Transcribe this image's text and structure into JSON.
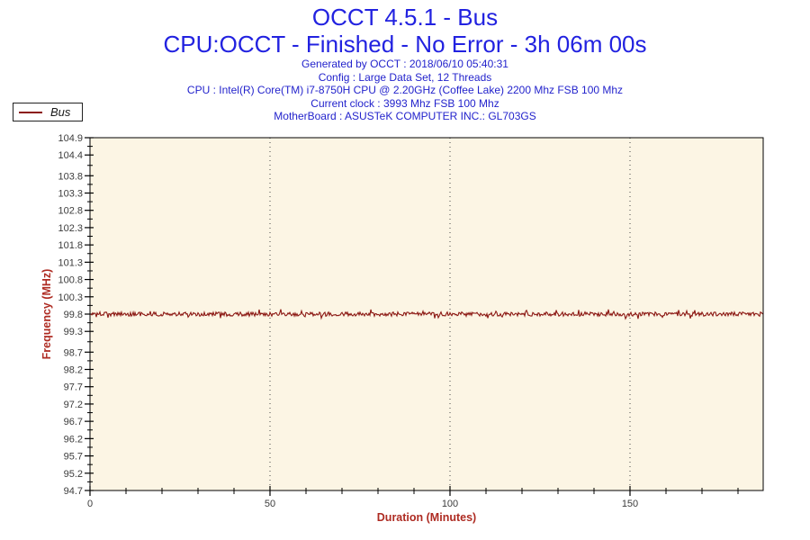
{
  "header": {
    "title": "OCCT 4.5.1 - Bus",
    "subtitle": "CPU:OCCT - Finished - No Error - 3h 06m 00s",
    "info_lines": [
      "Generated by OCCT : 2018/06/10 05:40:31",
      "Config : Large Data Set, 12 Threads",
      "CPU : Intel(R) Core(TM) i7-8750H CPU @ 2.20GHz (Coffee Lake) 2200 Mhz FSB 100 Mhz",
      "Current clock : 3993 Mhz FSB 100 Mhz",
      "MotherBoard : ASUSTeK COMPUTER INC.: GL703GS"
    ]
  },
  "legend": {
    "label": "Bus",
    "line_color": "#8B1712"
  },
  "colors": {
    "title_blue": "#2222E0",
    "info_blue": "#2323CC",
    "axis_label_red": "#AE2B22",
    "series_red": "#8B1712",
    "plot_background": "#FCF5E4",
    "axis_line": "#000000",
    "tick_text": "#3C3C3C",
    "gridline": "#444444"
  },
  "chart_data": {
    "type": "line",
    "title": "",
    "xlabel": "Duration (Minutes)",
    "ylabel": "Frequency (MHz)",
    "x_range": [
      0,
      187
    ],
    "ylim": [
      94.7,
      104.9
    ],
    "x_major_ticks": [
      0,
      50,
      100,
      150
    ],
    "x_minor_step": 10,
    "y_major_ticks": [
      104.9,
      104.4,
      103.8,
      103.3,
      102.8,
      102.3,
      101.8,
      101.3,
      100.8,
      100.3,
      99.8,
      99.3,
      98.7,
      98.2,
      97.7,
      97.2,
      96.7,
      96.2,
      95.7,
      95.2,
      94.7
    ],
    "gridlines_x": [
      50,
      100,
      150
    ],
    "grid_horizontal": false,
    "legend_position": "top-left-outside",
    "series": [
      {
        "name": "Bus",
        "color": "#8B1712",
        "base_value": 99.8,
        "noise_amplitude": 0.06,
        "x": [
          0,
          10,
          20,
          30,
          40,
          50,
          60,
          70,
          80,
          90,
          100,
          110,
          120,
          130,
          140,
          150,
          160,
          170,
          180,
          186
        ],
        "y": [
          99.8,
          99.8,
          99.8,
          99.8,
          99.8,
          99.8,
          99.8,
          99.8,
          99.8,
          99.8,
          99.8,
          99.8,
          99.8,
          99.8,
          99.8,
          99.8,
          99.8,
          99.8,
          99.8,
          99.8
        ]
      }
    ]
  }
}
